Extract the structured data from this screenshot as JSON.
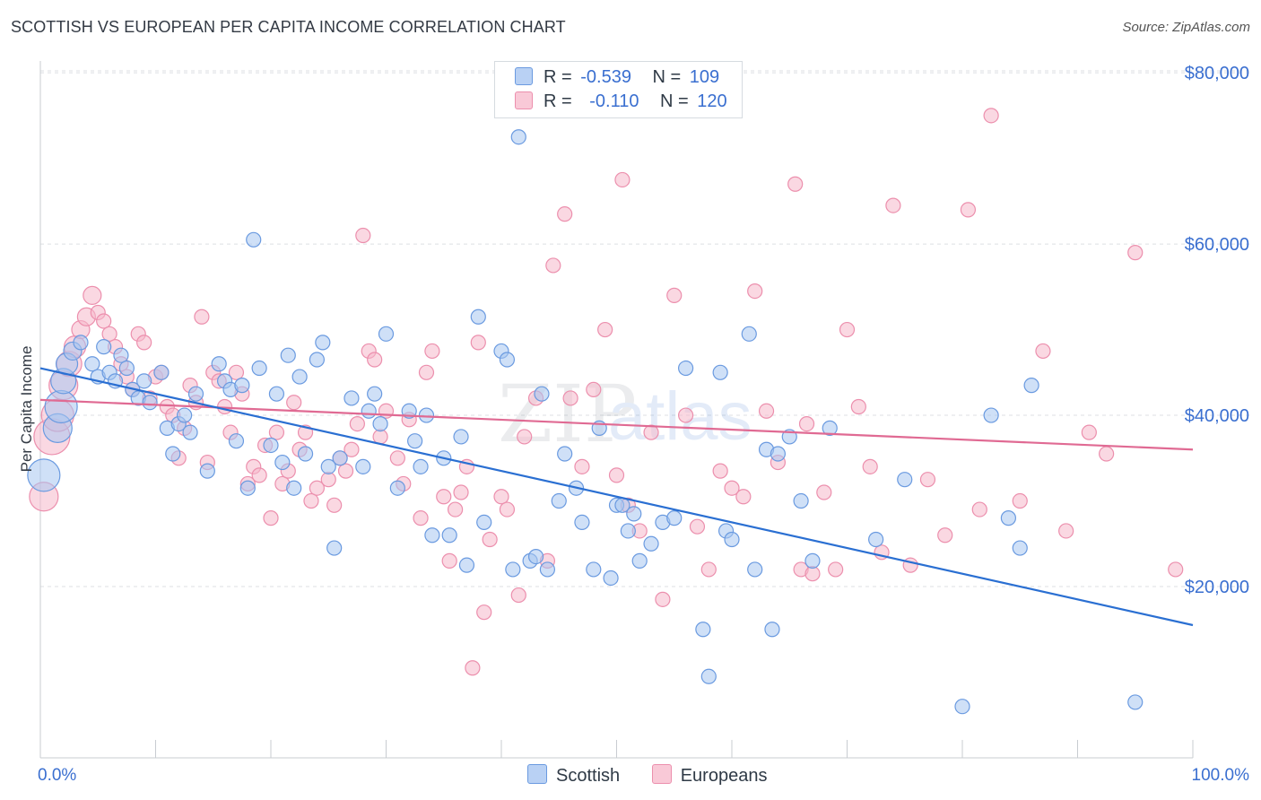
{
  "header": {
    "title": "SCOTTISH VS EUROPEAN PER CAPITA INCOME CORRELATION CHART",
    "source": "Source: ZipAtlas.com"
  },
  "watermark": {
    "zip": "ZIP",
    "atlas": "atlas"
  },
  "legend": {
    "rows": [
      {
        "r_label": "R =",
        "r_value": "-0.539",
        "n_label": "N =",
        "n_value": "109"
      },
      {
        "r_label": "R =",
        "r_value": "-0.110",
        "n_label": "N =",
        "n_value": "120"
      }
    ]
  },
  "colors": {
    "scottish_fill": "#a8c6f0",
    "scottish_stroke": "#6a9ae0",
    "scottish_line": "#2a6fd2",
    "european_fill": "#f6b8cb",
    "european_stroke": "#ec8fad",
    "european_line": "#e06a93",
    "axis_label": "#3a6fd0",
    "grid": "#dcdfe3"
  },
  "chart_data": {
    "type": "scatter",
    "ylabel": "Per Capita Income",
    "xlim": [
      0,
      100
    ],
    "ylim": [
      0,
      82000
    ],
    "x_tick_labels": [
      "0.0%",
      "100.0%"
    ],
    "y_ticks": [
      20000,
      40000,
      60000,
      80000
    ],
    "y_tick_labels": [
      "$20,000",
      "$40,000",
      "$60,000",
      "$80,000"
    ],
    "grid": true,
    "legend_position": "top-center",
    "series": [
      {
        "name": "Scottish",
        "r": -0.539,
        "n": 109,
        "trend": {
          "x": [
            0,
            100
          ],
          "y": [
            45500,
            15500
          ]
        },
        "points": [
          [
            0.3,
            33000,
            18
          ],
          [
            1.5,
            38500,
            16
          ],
          [
            1.8,
            41000,
            18
          ],
          [
            2.0,
            44000,
            14
          ],
          [
            2.3,
            46000,
            12
          ],
          [
            2.8,
            47500,
            10
          ],
          [
            3.5,
            48500,
            8
          ],
          [
            4.5,
            46000,
            8
          ],
          [
            5.0,
            44500,
            8
          ],
          [
            5.5,
            48000,
            8
          ],
          [
            6.0,
            45000,
            8
          ],
          [
            6.5,
            44000,
            8
          ],
          [
            7.0,
            47000,
            8
          ],
          [
            7.5,
            45500,
            8
          ],
          [
            8.0,
            43000,
            8
          ],
          [
            8.5,
            42000,
            8
          ],
          [
            9.0,
            44000,
            8
          ],
          [
            9.5,
            41500,
            8
          ],
          [
            10.5,
            45000,
            8
          ],
          [
            11.0,
            38500,
            8
          ],
          [
            11.5,
            35500,
            8
          ],
          [
            12.0,
            39000,
            8
          ],
          [
            12.5,
            40000,
            8
          ],
          [
            13.0,
            38000,
            8
          ],
          [
            13.5,
            42500,
            8
          ],
          [
            14.5,
            33500,
            8
          ],
          [
            15.5,
            46000,
            8
          ],
          [
            16.0,
            44000,
            8
          ],
          [
            16.5,
            43000,
            8
          ],
          [
            17.0,
            37000,
            8
          ],
          [
            17.5,
            43500,
            8
          ],
          [
            18.0,
            31500,
            8
          ],
          [
            18.5,
            60500,
            8
          ],
          [
            19.0,
            45500,
            8
          ],
          [
            20.0,
            36500,
            8
          ],
          [
            20.5,
            42500,
            8
          ],
          [
            21.0,
            34500,
            8
          ],
          [
            21.5,
            47000,
            8
          ],
          [
            22.0,
            31500,
            8
          ],
          [
            22.5,
            44500,
            8
          ],
          [
            23.0,
            35500,
            8
          ],
          [
            24.0,
            46500,
            8
          ],
          [
            24.5,
            48500,
            8
          ],
          [
            25.0,
            34000,
            8
          ],
          [
            25.5,
            24500,
            8
          ],
          [
            26.0,
            35000,
            8
          ],
          [
            27.0,
            42000,
            8
          ],
          [
            28.0,
            34000,
            8
          ],
          [
            28.5,
            40500,
            8
          ],
          [
            29.0,
            42500,
            8
          ],
          [
            29.5,
            39000,
            8
          ],
          [
            30.0,
            49500,
            8
          ],
          [
            31.0,
            31500,
            8
          ],
          [
            32.0,
            40500,
            8
          ],
          [
            32.5,
            37000,
            8
          ],
          [
            33.0,
            34000,
            8
          ],
          [
            33.5,
            40000,
            8
          ],
          [
            34.0,
            26000,
            8
          ],
          [
            35.0,
            35000,
            8
          ],
          [
            35.5,
            26000,
            8
          ],
          [
            36.5,
            37500,
            8
          ],
          [
            37.0,
            22500,
            8
          ],
          [
            38.0,
            51500,
            8
          ],
          [
            38.5,
            27500,
            8
          ],
          [
            40.0,
            47500,
            8
          ],
          [
            40.5,
            46500,
            8
          ],
          [
            41.0,
            22000,
            8
          ],
          [
            41.5,
            72500,
            8
          ],
          [
            42.5,
            23000,
            8
          ],
          [
            43.0,
            23500,
            8
          ],
          [
            43.5,
            42500,
            8
          ],
          [
            44.0,
            22000,
            8
          ],
          [
            45.0,
            30000,
            8
          ],
          [
            45.5,
            35500,
            8
          ],
          [
            46.5,
            31500,
            8
          ],
          [
            47.0,
            27500,
            8
          ],
          [
            48.0,
            22000,
            8
          ],
          [
            48.5,
            38500,
            8
          ],
          [
            49.5,
            21000,
            8
          ],
          [
            50.0,
            29500,
            8
          ],
          [
            50.5,
            29500,
            8
          ],
          [
            51.0,
            26500,
            8
          ],
          [
            51.5,
            28500,
            8
          ],
          [
            52.0,
            23000,
            8
          ],
          [
            53.0,
            25000,
            8
          ],
          [
            54.0,
            27500,
            8
          ],
          [
            55.0,
            28000,
            8
          ],
          [
            56.0,
            45500,
            8
          ],
          [
            57.5,
            15000,
            8
          ],
          [
            58.0,
            9500,
            8
          ],
          [
            59.0,
            45000,
            8
          ],
          [
            59.5,
            26500,
            8
          ],
          [
            60.0,
            25500,
            8
          ],
          [
            61.5,
            49500,
            8
          ],
          [
            62.0,
            22000,
            8
          ],
          [
            63.0,
            36000,
            8
          ],
          [
            63.5,
            15000,
            8
          ],
          [
            64.0,
            35500,
            8
          ],
          [
            65.0,
            37500,
            8
          ],
          [
            66.0,
            30000,
            8
          ],
          [
            67.0,
            23000,
            8
          ],
          [
            68.5,
            38500,
            8
          ],
          [
            72.5,
            25500,
            8
          ],
          [
            75.0,
            32500,
            8
          ],
          [
            80.0,
            6000,
            8
          ],
          [
            82.5,
            40000,
            8
          ],
          [
            84.0,
            28000,
            8
          ],
          [
            85.0,
            24500,
            8
          ],
          [
            86.0,
            43500,
            8
          ],
          [
            95.0,
            6500,
            8
          ]
        ]
      },
      {
        "name": "Europeans",
        "r": -0.11,
        "n": 120,
        "trend": {
          "x": [
            0,
            100
          ],
          "y": [
            41800,
            36000
          ]
        },
        "points": [
          [
            0.3,
            30500,
            16
          ],
          [
            1.0,
            37500,
            20
          ],
          [
            1.5,
            40000,
            18
          ],
          [
            2.0,
            43500,
            16
          ],
          [
            2.5,
            46000,
            14
          ],
          [
            3.0,
            48000,
            12
          ],
          [
            3.5,
            50000,
            10
          ],
          [
            4.0,
            51500,
            10
          ],
          [
            4.5,
            54000,
            10
          ],
          [
            5.0,
            52000,
            8
          ],
          [
            5.5,
            51000,
            8
          ],
          [
            6.0,
            49500,
            8
          ],
          [
            6.5,
            48000,
            8
          ],
          [
            7.0,
            46000,
            8
          ],
          [
            7.5,
            44500,
            8
          ],
          [
            8.0,
            43000,
            8
          ],
          [
            8.5,
            49500,
            8
          ],
          [
            9.0,
            48500,
            8
          ],
          [
            9.5,
            42000,
            8
          ],
          [
            10.0,
            44500,
            8
          ],
          [
            10.5,
            45000,
            8
          ],
          [
            11.0,
            41000,
            8
          ],
          [
            11.5,
            40000,
            8
          ],
          [
            12.0,
            35000,
            8
          ],
          [
            12.5,
            38500,
            8
          ],
          [
            13.0,
            43500,
            8
          ],
          [
            13.5,
            41500,
            8
          ],
          [
            14.0,
            51500,
            8
          ],
          [
            14.5,
            34500,
            8
          ],
          [
            15.0,
            45000,
            8
          ],
          [
            15.5,
            44000,
            8
          ],
          [
            16.0,
            41000,
            8
          ],
          [
            16.5,
            38000,
            8
          ],
          [
            17.0,
            45000,
            8
          ],
          [
            17.5,
            42500,
            8
          ],
          [
            18.0,
            32000,
            8
          ],
          [
            18.5,
            34000,
            8
          ],
          [
            19.0,
            33000,
            8
          ],
          [
            19.5,
            36500,
            8
          ],
          [
            20.0,
            28000,
            8
          ],
          [
            20.5,
            38000,
            8
          ],
          [
            21.0,
            32000,
            8
          ],
          [
            21.5,
            33500,
            8
          ],
          [
            22.0,
            41500,
            8
          ],
          [
            22.5,
            36000,
            8
          ],
          [
            23.0,
            38000,
            8
          ],
          [
            23.5,
            30000,
            8
          ],
          [
            24.0,
            31500,
            8
          ],
          [
            25.0,
            32500,
            8
          ],
          [
            25.5,
            29500,
            8
          ],
          [
            26.0,
            35000,
            8
          ],
          [
            26.5,
            33500,
            8
          ],
          [
            27.0,
            36000,
            8
          ],
          [
            27.5,
            39000,
            8
          ],
          [
            28.0,
            61000,
            8
          ],
          [
            28.5,
            47500,
            8
          ],
          [
            29.0,
            46500,
            8
          ],
          [
            29.5,
            37500,
            8
          ],
          [
            30.0,
            40500,
            8
          ],
          [
            31.0,
            35000,
            8
          ],
          [
            31.5,
            32000,
            8
          ],
          [
            32.0,
            39500,
            8
          ],
          [
            33.0,
            28000,
            8
          ],
          [
            33.5,
            45000,
            8
          ],
          [
            34.0,
            47500,
            8
          ],
          [
            35.0,
            30500,
            8
          ],
          [
            35.5,
            23000,
            8
          ],
          [
            36.0,
            29000,
            8
          ],
          [
            36.5,
            31000,
            8
          ],
          [
            37.0,
            34000,
            8
          ],
          [
            37.5,
            10500,
            8
          ],
          [
            38.0,
            48500,
            8
          ],
          [
            38.5,
            17000,
            8
          ],
          [
            39.0,
            25500,
            8
          ],
          [
            40.0,
            30500,
            8
          ],
          [
            40.5,
            29000,
            8
          ],
          [
            41.5,
            19000,
            8
          ],
          [
            42.0,
            37500,
            8
          ],
          [
            43.0,
            42000,
            8
          ],
          [
            44.0,
            23000,
            8
          ],
          [
            44.5,
            57500,
            8
          ],
          [
            45.5,
            63500,
            8
          ],
          [
            46.0,
            42000,
            8
          ],
          [
            47.0,
            34000,
            8
          ],
          [
            48.0,
            43000,
            8
          ],
          [
            49.0,
            50000,
            8
          ],
          [
            50.0,
            33000,
            8
          ],
          [
            50.5,
            67500,
            8
          ],
          [
            51.0,
            29500,
            8
          ],
          [
            52.0,
            26500,
            8
          ],
          [
            53.0,
            38000,
            8
          ],
          [
            54.0,
            18500,
            8
          ],
          [
            55.0,
            54000,
            8
          ],
          [
            56.0,
            40000,
            8
          ],
          [
            57.0,
            27000,
            8
          ],
          [
            58.0,
            22000,
            8
          ],
          [
            59.0,
            33500,
            8
          ],
          [
            60.0,
            31500,
            8
          ],
          [
            61.0,
            30500,
            8
          ],
          [
            62.0,
            54500,
            8
          ],
          [
            63.0,
            40500,
            8
          ],
          [
            64.0,
            34500,
            8
          ],
          [
            65.5,
            67000,
            8
          ],
          [
            66.0,
            22000,
            8
          ],
          [
            66.5,
            39000,
            8
          ],
          [
            67.0,
            21500,
            8
          ],
          [
            68.0,
            31000,
            8
          ],
          [
            69.0,
            22000,
            8
          ],
          [
            70.0,
            50000,
            8
          ],
          [
            71.0,
            41000,
            8
          ],
          [
            72.0,
            34000,
            8
          ],
          [
            73.0,
            24000,
            8
          ],
          [
            74.0,
            64500,
            8
          ],
          [
            75.5,
            22500,
            8
          ],
          [
            77.0,
            32500,
            8
          ],
          [
            78.5,
            26000,
            8
          ],
          [
            80.5,
            64000,
            8
          ],
          [
            81.5,
            29000,
            8
          ],
          [
            82.5,
            75000,
            8
          ],
          [
            85.0,
            30000,
            8
          ],
          [
            87.0,
            47500,
            8
          ],
          [
            89.0,
            26500,
            8
          ],
          [
            91.0,
            38000,
            8
          ],
          [
            92.5,
            35500,
            8
          ],
          [
            95.0,
            59000,
            8
          ],
          [
            98.5,
            22000,
            8
          ]
        ]
      }
    ]
  },
  "bottom_legend": {
    "items": [
      "Scottish",
      "Europeans"
    ]
  }
}
